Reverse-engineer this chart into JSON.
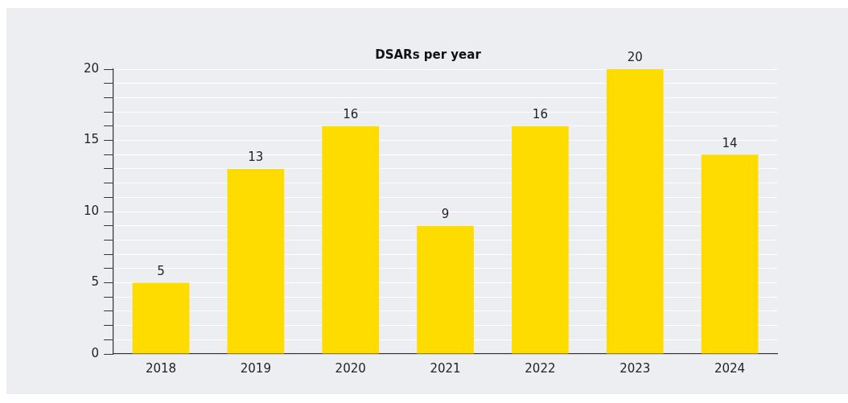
{
  "chart_data": {
    "type": "bar",
    "title": "DSARs per year",
    "categories": [
      "2018",
      "2019",
      "2020",
      "2021",
      "2022",
      "2023",
      "2024"
    ],
    "values": [
      5,
      13,
      16,
      9,
      16,
      20,
      14
    ],
    "color": "#ffdc00",
    "ylim": [
      0,
      20
    ],
    "yticks": [
      0,
      {
        "value": 1,
        "label": null
      },
      {
        "value": 2,
        "label": null
      },
      {
        "value": 3,
        "label": null
      },
      {
        "value": 4,
        "label": null
      },
      5,
      {
        "value": 6,
        "label": null
      },
      {
        "value": 7,
        "label": null
      },
      {
        "value": 8,
        "label": null
      },
      {
        "value": 9,
        "label": null
      },
      10,
      {
        "value": 11,
        "label": null
      },
      {
        "value": 12,
        "label": null
      },
      {
        "value": 13,
        "label": null
      },
      {
        "value": 14,
        "label": null
      },
      15,
      {
        "value": 16,
        "label": null
      },
      {
        "value": 17,
        "label": null
      },
      {
        "value": 18,
        "label": null
      },
      {
        "value": 19,
        "label": null
      },
      20
    ],
    "grid": "y",
    "data_labels": true
  }
}
